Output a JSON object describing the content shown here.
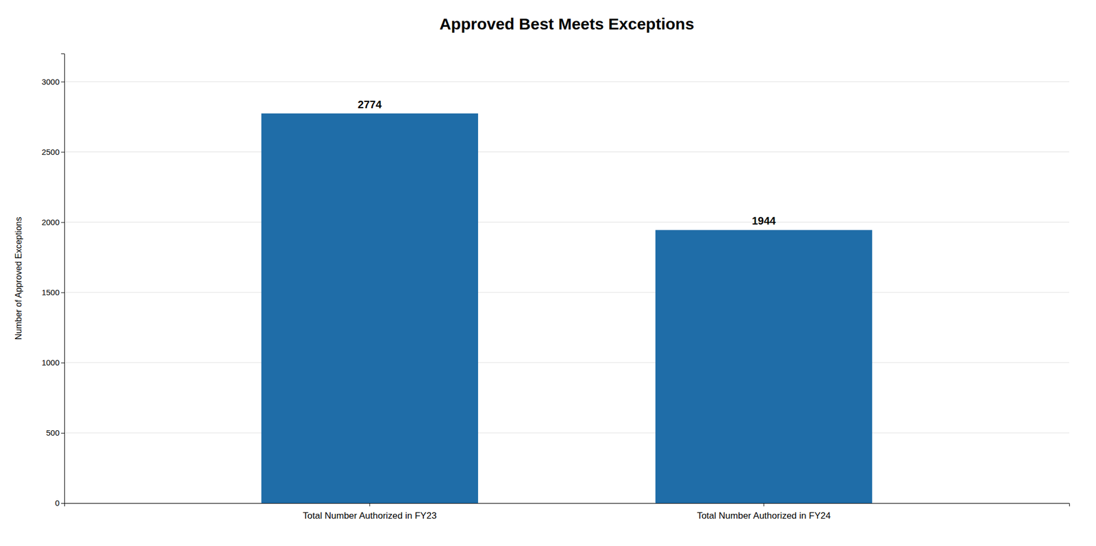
{
  "chart_data": {
    "type": "bar",
    "title": "Approved Best Meets Exceptions",
    "categories": [
      "Total Number Authorized in FY23",
      "Total Number Authorized in FY24"
    ],
    "values": [
      2774,
      1944
    ],
    "color": "#1f6da8",
    "ylabel": "Number of Approved Exceptions",
    "ylim": [
      0,
      3200
    ],
    "yticks": [
      0,
      500,
      1000,
      1500,
      2000,
      2500,
      3000
    ],
    "grid": true,
    "data_labels": true
  }
}
